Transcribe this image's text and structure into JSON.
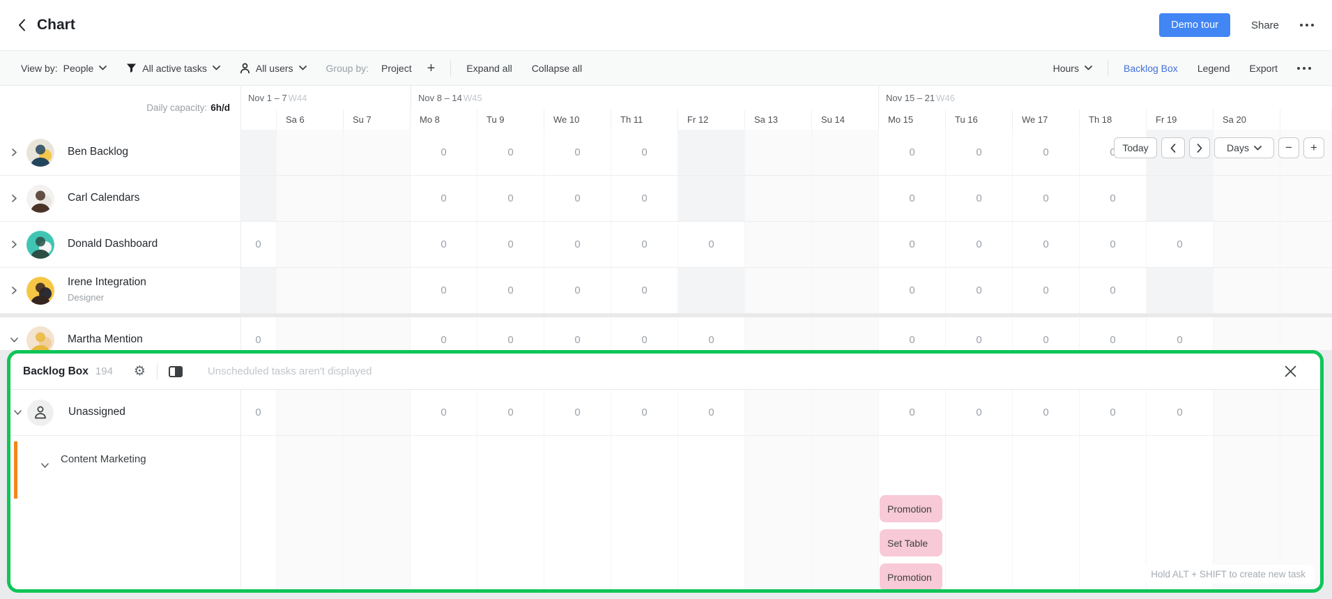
{
  "header": {
    "title": "Chart",
    "demo_tour_button": "Demo tour",
    "share_button": "Share"
  },
  "toolbar": {
    "view_by_label": "View by:",
    "view_by_value": "People",
    "active_tasks_filter": "All active tasks",
    "users_filter": "All users",
    "group_by_label": "Group by:",
    "group_by_value": "Project",
    "expand_all": "Expand all",
    "collapse_all": "Collapse all",
    "units_selector": "Hours",
    "backlog_box_link": "Backlog Box",
    "legend_link": "Legend",
    "export_link": "Export"
  },
  "timeline": {
    "daily_capacity_label": "Daily capacity:",
    "daily_capacity_value": "6h/d",
    "weeks": [
      {
        "range": "Nov 1 – 7",
        "week": "W44"
      },
      {
        "range": "Nov 8 – 14",
        "week": "W45"
      },
      {
        "range": "Nov 15 – 21",
        "week": "W46"
      }
    ],
    "days": [
      "Sa 6",
      "Su 7",
      "Mo 8",
      "Tu 9",
      "We 10",
      "Th 11",
      "Fr 12",
      "Sa 13",
      "Su 14",
      "Mo 15",
      "Tu 16",
      "We 17",
      "Th 18",
      "Fr 19",
      "Sa 20"
    ]
  },
  "zoom_controls": {
    "today": "Today",
    "scale": "Days",
    "zoom_out": "−",
    "zoom_in": "+"
  },
  "grid": {
    "zero_value": "0",
    "weekend_columns": [
      1,
      2,
      8,
      9,
      15,
      16
    ],
    "friday_columns": [
      0,
      7,
      14
    ]
  },
  "people": [
    {
      "name": "Ben Backlog",
      "role": null,
      "chevron": "right",
      "fridays_off": true,
      "zero_columns": [
        3,
        4,
        5,
        6,
        10,
        11,
        12,
        13
      ],
      "avatar_bg": "#e9e4da",
      "avatar_fg": "#23455c",
      "avatar_accent": "#f3c64e"
    },
    {
      "name": "Carl Calendars",
      "role": null,
      "chevron": "right",
      "fridays_off": true,
      "zero_columns": [
        3,
        4,
        5,
        6,
        10,
        11,
        12,
        13
      ],
      "avatar_bg": "#f4f2f0",
      "avatar_fg": "#4a3227",
      "avatar_accent": "#e8e6e3"
    },
    {
      "name": "Donald Dashboard",
      "role": null,
      "chevron": "right",
      "fridays_off": false,
      "zero_columns": [
        0,
        3,
        4,
        5,
        6,
        7,
        10,
        11,
        12,
        13,
        14
      ],
      "avatar_bg": "#41c5b3",
      "avatar_fg": "#2c4f45",
      "avatar_accent": "#f5f5f5"
    },
    {
      "name": "Irene Integration",
      "role": "Designer",
      "chevron": "right",
      "fridays_off": true,
      "zero_columns": [
        3,
        4,
        5,
        6,
        10,
        11,
        12,
        13
      ],
      "avatar_bg": "#f6c744",
      "avatar_fg": "#35251f",
      "avatar_accent": "#2c2c34"
    },
    {
      "name": "Martha Mention",
      "role": null,
      "chevron": "down",
      "fridays_off": false,
      "zero_columns": [
        0,
        3,
        4,
        5,
        6,
        7,
        10,
        11,
        12,
        13,
        14
      ],
      "avatar_bg": "#f3e3cf",
      "avatar_fg": "#e9b83d",
      "avatar_accent": "#f0cf9d"
    }
  ],
  "backlog_panel": {
    "title": "Backlog Box",
    "task_count": "194",
    "notice": "Unscheduled tasks aren't displayed",
    "unassigned_row": {
      "name": "Unassigned",
      "zero_columns": [
        0,
        3,
        4,
        5,
        6,
        7,
        10,
        11,
        12,
        13,
        14
      ]
    },
    "project_group": {
      "name": "Content Marketing",
      "color": "#f0871a",
      "tasks": [
        "Promotion",
        "Set Table",
        "Promotion"
      ]
    },
    "hint": "Hold ALT + SHIFT to create new task"
  },
  "colors": {
    "highlight_green": "#0fc558",
    "accent_blue": "#4285f4",
    "link_blue": "#3e6fd9",
    "task_pink": "#f8c9d6",
    "project_orange": "#f0871a"
  }
}
